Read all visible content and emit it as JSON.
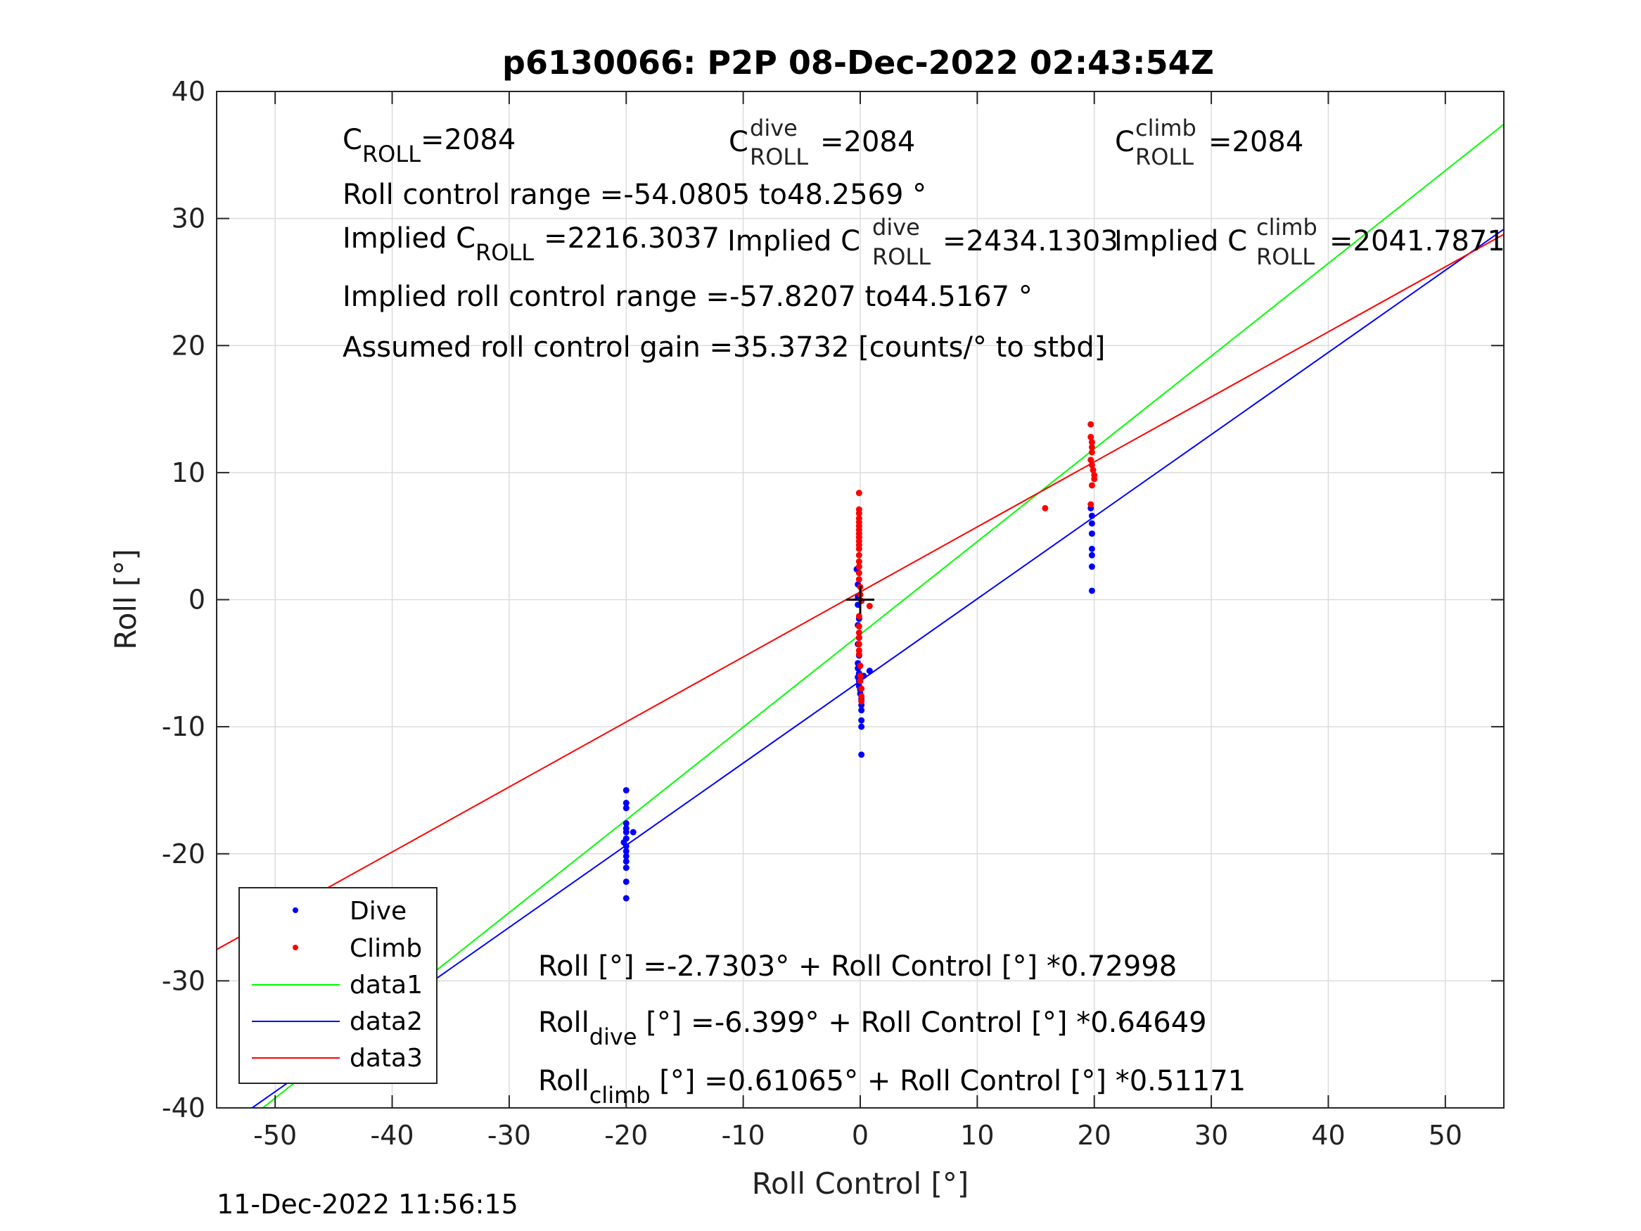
{
  "chart_data": {
    "type": "scatter",
    "title": "p6130066: P2P 08-Dec-2022 02:43:54Z",
    "xlabel": "Roll Control [°]",
    "ylabel": "Roll [°]",
    "xlim": [
      -55,
      55
    ],
    "ylim": [
      -40,
      40
    ],
    "xticks": [
      -50,
      -40,
      -30,
      -20,
      -10,
      0,
      10,
      20,
      30,
      40,
      50
    ],
    "yticks": [
      -40,
      -30,
      -20,
      -10,
      0,
      10,
      20,
      30,
      40
    ],
    "grid": true,
    "legend_position": "bottom-left",
    "series": [
      {
        "name": "Dive",
        "kind": "points",
        "color": "#0000ff",
        "points": [
          [
            -20,
            -15.0
          ],
          [
            -20,
            -16.0
          ],
          [
            -20,
            -16.4
          ],
          [
            -20,
            -17.6
          ],
          [
            -20,
            -18.0
          ],
          [
            -20,
            -18.3
          ],
          [
            -20,
            -18.8
          ],
          [
            -20,
            -19.4
          ],
          [
            -20,
            -19.8
          ],
          [
            -20,
            -20.2
          ],
          [
            -20,
            -20.6
          ],
          [
            -20,
            -21.1
          ],
          [
            -20,
            -22.2
          ],
          [
            -20,
            -23.5
          ],
          [
            -19.4,
            -18.3
          ],
          [
            -20.2,
            -19.1
          ],
          [
            -0.3,
            2.4
          ],
          [
            -0.2,
            1.2
          ],
          [
            -0.2,
            0.2
          ],
          [
            -0.2,
            -0.4
          ],
          [
            -0.1,
            -1.5
          ],
          [
            -0.2,
            -2.0
          ],
          [
            -0.1,
            -3.0
          ],
          [
            -0.2,
            -3.5
          ],
          [
            -0.1,
            -4.4
          ],
          [
            -0.2,
            -5.0
          ],
          [
            -0.2,
            -5.4
          ],
          [
            -0.1,
            -5.8
          ],
          [
            -0.2,
            -6.1
          ],
          [
            -0.1,
            -6.4
          ],
          [
            -0.1,
            -6.8
          ],
          [
            0.0,
            -7.1
          ],
          [
            0.0,
            -7.4
          ],
          [
            0.1,
            -7.8
          ],
          [
            0.1,
            -8.3
          ],
          [
            0.1,
            -8.7
          ],
          [
            0.1,
            -9.5
          ],
          [
            0.1,
            -10.0
          ],
          [
            0.1,
            -12.2
          ],
          [
            0.8,
            -5.6
          ],
          [
            0.3,
            -6.0
          ],
          [
            19.7,
            7.2
          ],
          [
            19.8,
            6.6
          ],
          [
            19.8,
            6.0
          ],
          [
            19.8,
            5.2
          ],
          [
            19.8,
            4.0
          ],
          [
            19.8,
            3.5
          ],
          [
            19.8,
            2.6
          ],
          [
            19.8,
            0.7
          ]
        ]
      },
      {
        "name": "Climb",
        "kind": "points",
        "color": "#ff0000",
        "points": [
          [
            -0.1,
            8.4
          ],
          [
            -0.1,
            7.1
          ],
          [
            -0.1,
            6.8
          ],
          [
            -0.1,
            6.4
          ],
          [
            -0.1,
            6.1
          ],
          [
            -0.1,
            5.8
          ],
          [
            -0.1,
            5.5
          ],
          [
            -0.1,
            5.2
          ],
          [
            -0.1,
            4.9
          ],
          [
            -0.1,
            4.6
          ],
          [
            -0.1,
            4.3
          ],
          [
            -0.1,
            4.0
          ],
          [
            -0.1,
            3.5
          ],
          [
            -0.1,
            3.0
          ],
          [
            -0.1,
            2.6
          ],
          [
            -0.1,
            2.1
          ],
          [
            -0.1,
            1.6
          ],
          [
            0.0,
            1.0
          ],
          [
            0.0,
            0.4
          ],
          [
            0.1,
            -0.1
          ],
          [
            0.8,
            -0.5
          ],
          [
            -0.1,
            -1.3
          ],
          [
            -0.1,
            -2.1
          ],
          [
            -0.1,
            -2.6
          ],
          [
            -0.1,
            -3.0
          ],
          [
            -0.1,
            -3.5
          ],
          [
            -0.1,
            -4.0
          ],
          [
            -0.1,
            -4.3
          ],
          [
            0.0,
            -5.2
          ],
          [
            0.0,
            -6.0
          ],
          [
            0.0,
            -6.4
          ],
          [
            0.1,
            -7.0
          ],
          [
            0.1,
            -7.6
          ],
          [
            0.1,
            -8.0
          ],
          [
            15.8,
            7.2
          ],
          [
            19.7,
            13.8
          ],
          [
            19.7,
            12.8
          ],
          [
            19.8,
            12.4
          ],
          [
            19.8,
            12.0
          ],
          [
            19.8,
            11.6
          ],
          [
            19.7,
            11.0
          ],
          [
            19.8,
            10.6
          ],
          [
            19.9,
            10.2
          ],
          [
            20.0,
            9.8
          ],
          [
            20.0,
            9.5
          ],
          [
            19.8,
            9.0
          ],
          [
            19.7,
            7.5
          ]
        ]
      },
      {
        "name": "data1",
        "kind": "line",
        "color": "#00ff00",
        "intercept": -2.7303,
        "slope": 0.72998
      },
      {
        "name": "data2",
        "kind": "line",
        "color": "#0000ff",
        "intercept": -6.399,
        "slope": 0.64649
      },
      {
        "name": "data3",
        "kind": "line",
        "color": "#ff0000",
        "intercept": 0.61065,
        "slope": 0.51171
      }
    ],
    "marker": {
      "x": 0,
      "y": 0,
      "color": "#000000"
    }
  },
  "annotations": {
    "c_roll": {
      "main": "C",
      "sub": "ROLL",
      "value": "=2084"
    },
    "c_roll_dive": {
      "main": "C",
      "sup": "dive",
      "sub": "ROLL",
      "value": "=2084"
    },
    "c_roll_climb": {
      "main": "C",
      "sup": "climb",
      "sub": "ROLL",
      "value": "=2084"
    },
    "roll_control_range": "Roll control range =-54.0805 to48.2569 °",
    "implied_c_roll": {
      "main": "Implied C",
      "sub": "ROLL",
      "value": "=2216.3037"
    },
    "implied_c_roll_dive": {
      "main": "Implied C",
      "sup": "dive",
      "sub": "ROLL",
      "value": "=2434.1303"
    },
    "implied_c_roll_climb": {
      "main": "Implied C",
      "sup": "climb",
      "sub": "ROLL",
      "value": "=2041.7871"
    },
    "implied_range": "Implied roll control range =-57.8207 to44.5167 °",
    "assumed_gain": "Assumed roll control gain =35.3732 [counts/° to stbd]",
    "fit_all": "Roll [°] =-2.7303° + Roll Control [°] *0.72998",
    "fit_dive": {
      "main": "Roll",
      "sub": "dive",
      "rest": " [°] =-6.399° + Roll Control [°] *0.64649"
    },
    "fit_climb": {
      "main": "Roll",
      "sub": "climb",
      "rest": " [°] =0.61065° + Roll Control [°] *0.51171"
    }
  },
  "footer": {
    "timestamp": "11-Dec-2022 11:56:15"
  }
}
